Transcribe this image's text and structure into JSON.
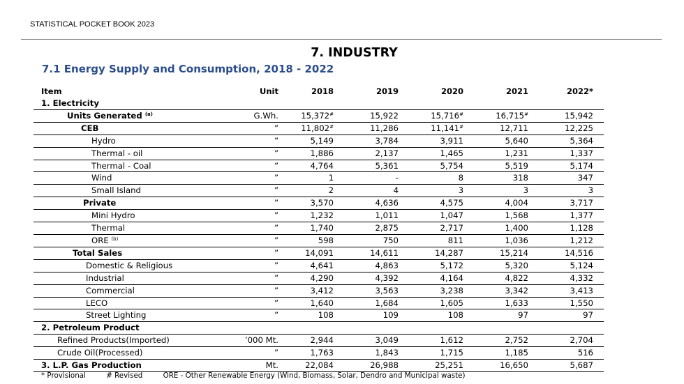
{
  "header": "STATISTICAL POCKET BOOK 2023",
  "chapter_title": "7.  INDUSTRY",
  "section_title": "7.1 Energy Supply and Consumption, 2018 - 2022",
  "columns": {
    "item": "Item",
    "unit": "Unit",
    "years": [
      "2018",
      "2019",
      "2020",
      "2021",
      "2022*"
    ]
  },
  "rows": [
    {
      "label": "1. Electricity",
      "sup": "",
      "unit": "",
      "values": [
        "",
        "",
        "",
        "",
        ""
      ],
      "bold": true,
      "indent": 1,
      "border": true
    },
    {
      "label": "Units Generated",
      "sup": "(a)",
      "unit": "G.Wh.",
      "values": [
        "15,372#",
        "15,922",
        "15,716#",
        "16,715#",
        "15,942"
      ],
      "bold": true,
      "indent": 3,
      "border": true
    },
    {
      "label": "CEB",
      "sup": "",
      "unit": "”",
      "values": [
        "11,802#",
        "11,286",
        "11,141#",
        "12,711",
        "12,225"
      ],
      "bold": true,
      "indent": 4,
      "border": true
    },
    {
      "label": "Hydro",
      "sup": "",
      "unit": "”",
      "values": [
        "5,149",
        "3,784",
        "3,911",
        "5,640",
        "5,364"
      ],
      "bold": false,
      "indent": 5,
      "border": true
    },
    {
      "label": "Thermal - oil",
      "sup": "",
      "unit": "”",
      "values": [
        "1,886",
        "2,137",
        "1,465",
        "1,231",
        "1,337"
      ],
      "bold": false,
      "indent": 5,
      "border": true
    },
    {
      "label": "Thermal - Coal",
      "sup": "",
      "unit": "”",
      "values": [
        "4,764",
        "5,361",
        "5,754",
        "5,519",
        "5,174"
      ],
      "bold": false,
      "indent": 5,
      "border": true
    },
    {
      "label": "Wind",
      "sup": "",
      "unit": "”",
      "values": [
        "1",
        "-",
        "8",
        "318",
        "347"
      ],
      "bold": false,
      "indent": 5,
      "border": true
    },
    {
      "label": "Small Island",
      "sup": "",
      "unit": "”",
      "values": [
        "2",
        "4",
        "3",
        "3",
        "3"
      ],
      "bold": false,
      "indent": 5,
      "border": true
    },
    {
      "label": "Private",
      "sup": "",
      "unit": "”",
      "values": [
        "3,570",
        "4,636",
        "4,575",
        "4,004",
        "3,717"
      ],
      "bold": true,
      "indent": 6,
      "border": true
    },
    {
      "label": "Mini Hydro",
      "sup": "",
      "unit": "”",
      "values": [
        "1,232",
        "1,011",
        "1,047",
        "1,568",
        "1,377"
      ],
      "bold": false,
      "indent": 5,
      "border": true
    },
    {
      "label": "Thermal",
      "sup": "",
      "unit": "”",
      "values": [
        "1,740",
        "2,875",
        "2,717",
        "1,400",
        "1,128"
      ],
      "bold": false,
      "indent": 5,
      "border": true
    },
    {
      "label": "ORE",
      "sup": "(b)",
      "unit": "”",
      "values": [
        "598",
        "750",
        "811",
        "1,036",
        "1,212"
      ],
      "bold": false,
      "indent": 5,
      "border": true
    },
    {
      "label": "Total Sales",
      "sup": "",
      "unit": "”",
      "values": [
        "14,091",
        "14,611",
        "14,287",
        "15,214",
        "14,516"
      ],
      "bold": true,
      "indent": 2,
      "border": true
    },
    {
      "label": "Domestic & Religious",
      "sup": "",
      "unit": "”",
      "values": [
        "4,641",
        "4,863",
        "5,172",
        "5,320",
        "5,124"
      ],
      "bold": false,
      "indent": 7,
      "border": true
    },
    {
      "label": "Industrial",
      "sup": "",
      "unit": "”",
      "values": [
        "4,290",
        "4,392",
        "4,164",
        "4,822",
        "4,332"
      ],
      "bold": false,
      "indent": 7,
      "border": true
    },
    {
      "label": "Commercial",
      "sup": "",
      "unit": "”",
      "values": [
        "3,412",
        "3,563",
        "3,238",
        "3,342",
        "3,413"
      ],
      "bold": false,
      "indent": 7,
      "border": true
    },
    {
      "label": "LECO",
      "sup": "",
      "unit": "”",
      "values": [
        "1,640",
        "1,684",
        "1,605",
        "1,633",
        "1,550"
      ],
      "bold": false,
      "indent": 7,
      "border": true
    },
    {
      "label": "Street Lighting",
      "sup": "",
      "unit": "”",
      "values": [
        "108",
        "109",
        "108",
        "97",
        "97"
      ],
      "bold": false,
      "indent": 7,
      "border": true
    },
    {
      "label": "2. Petroleum Product",
      "sup": "",
      "unit": "",
      "values": [
        "",
        "",
        "",
        "",
        ""
      ],
      "bold": true,
      "indent": 1,
      "border": true
    },
    {
      "label": "Refined Products(Imported)",
      "sup": "",
      "unit": "’000 Mt.",
      "values": [
        "2,944",
        "3,049",
        "1,612",
        "2,752",
        "2,704"
      ],
      "bold": false,
      "indent": 8,
      "border": true
    },
    {
      "label": "Crude Oil(Processed)",
      "sup": "",
      "unit": "”",
      "values": [
        "1,763",
        "1,843",
        "1,715",
        "1,185",
        "516"
      ],
      "bold": false,
      "indent": 8,
      "border": true
    },
    {
      "label": "3. L.P. Gas Production",
      "sup": "",
      "unit": "Mt.",
      "values": [
        "22,084",
        "26,988",
        "25,251",
        "16,650",
        "5,687"
      ],
      "bold": true,
      "indent": 1,
      "border": true
    }
  ],
  "footnotes": [
    "* Provisional",
    "# Revised",
    "ORE - Other Renewable Energy (Wind, Biomass, Solar, Dendro and Municipal waste)"
  ]
}
